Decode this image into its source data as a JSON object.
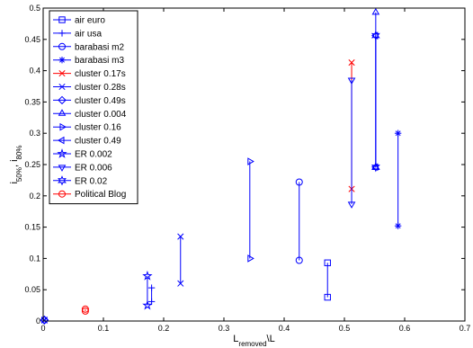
{
  "chart_data": {
    "type": "scatter",
    "title": "",
    "xlabel": "L_removed\\L",
    "ylabel": "i_50%, i_80%",
    "xlim": [
      0,
      0.7
    ],
    "ylim": [
      0,
      0.5
    ],
    "grid": false,
    "legend_position": "top-left",
    "xticks": [
      0,
      0.1,
      0.2,
      0.3,
      0.4,
      0.5,
      0.6,
      0.7
    ],
    "xtick_labels": [
      "0",
      "0.1",
      "0.2",
      "0.3",
      "0.4",
      "0.5",
      "0.6",
      "0.7"
    ],
    "yticks": [
      0,
      0.05,
      0.1,
      0.15,
      0.2,
      0.25,
      0.3,
      0.35,
      0.4,
      0.45,
      0.5
    ],
    "ytick_labels": [
      "0",
      "0.05",
      "0.1",
      "0.15",
      "0.2",
      "0.25",
      "0.3",
      "0.35",
      "0.4",
      "0.45",
      "0.5"
    ],
    "series": [
      {
        "name": "air euro",
        "marker": "square",
        "color": "#0000ff",
        "x": 0.472,
        "y": [
          0.038,
          0.093
        ]
      },
      {
        "name": "air usa",
        "marker": "plus",
        "color": "#0000ff",
        "x": 0.18,
        "y": [
          0.031,
          0.053
        ]
      },
      {
        "name": "barabasi m2",
        "marker": "circle",
        "color": "#0000ff",
        "x": 0.425,
        "y": [
          0.097,
          0.222
        ]
      },
      {
        "name": "barabasi m3",
        "marker": "asterisk",
        "color": "#0000ff",
        "x": 0.589,
        "y": [
          0.152,
          0.3
        ]
      },
      {
        "name": "cluster 0.17s",
        "marker": "x",
        "color": "#ff0000",
        "x": 0.512,
        "y": [
          0.211,
          0.413
        ]
      },
      {
        "name": "cluster 0.28s",
        "marker": "x",
        "color": "#0000ff",
        "x": 0.002,
        "y": [
          0.001,
          0.002
        ]
      },
      {
        "name": "cluster 0.49s",
        "marker": "diamond",
        "color": "#0000ff",
        "x": 0.002,
        "y": [
          0.001,
          0.002
        ]
      },
      {
        "name": "cluster 0.004",
        "marker": "triangle-up",
        "color": "#0000ff",
        "x": 0.552,
        "y": [
          0.245,
          0.493
        ]
      },
      {
        "name": "cluster 0.16",
        "marker": "triangle-right",
        "color": "#0000ff",
        "x": 0.343,
        "y": [
          0.1,
          0.255
        ]
      },
      {
        "name": "cluster 0.49",
        "marker": "triangle-left",
        "color": "#0000ff",
        "x": 0.552,
        "y": [
          0.246,
          0.456
        ]
      },
      {
        "name": "ER 0.002",
        "marker": "pentagram",
        "color": "#0000ff",
        "x": 0.173,
        "y": [
          0.025,
          0.072
        ]
      },
      {
        "name": "ER 0.006",
        "marker": "triangle-down",
        "color": "#0000ff",
        "x": 0.512,
        "y": [
          0.187,
          0.385
        ]
      },
      {
        "name": "ER 0.02",
        "marker": "hexagram",
        "color": "#0000ff",
        "x": 0.552,
        "y": [
          0.246,
          0.456
        ]
      },
      {
        "name": "Political Blog",
        "marker": "circle",
        "color": "#ff0000",
        "x": 0.07,
        "y": [
          0.016,
          0.019
        ]
      }
    ],
    "extra_segments": [
      {
        "marker": "x",
        "color": "#0000ff",
        "x": 0.228,
        "y": [
          0.06,
          0.135
        ]
      }
    ]
  }
}
